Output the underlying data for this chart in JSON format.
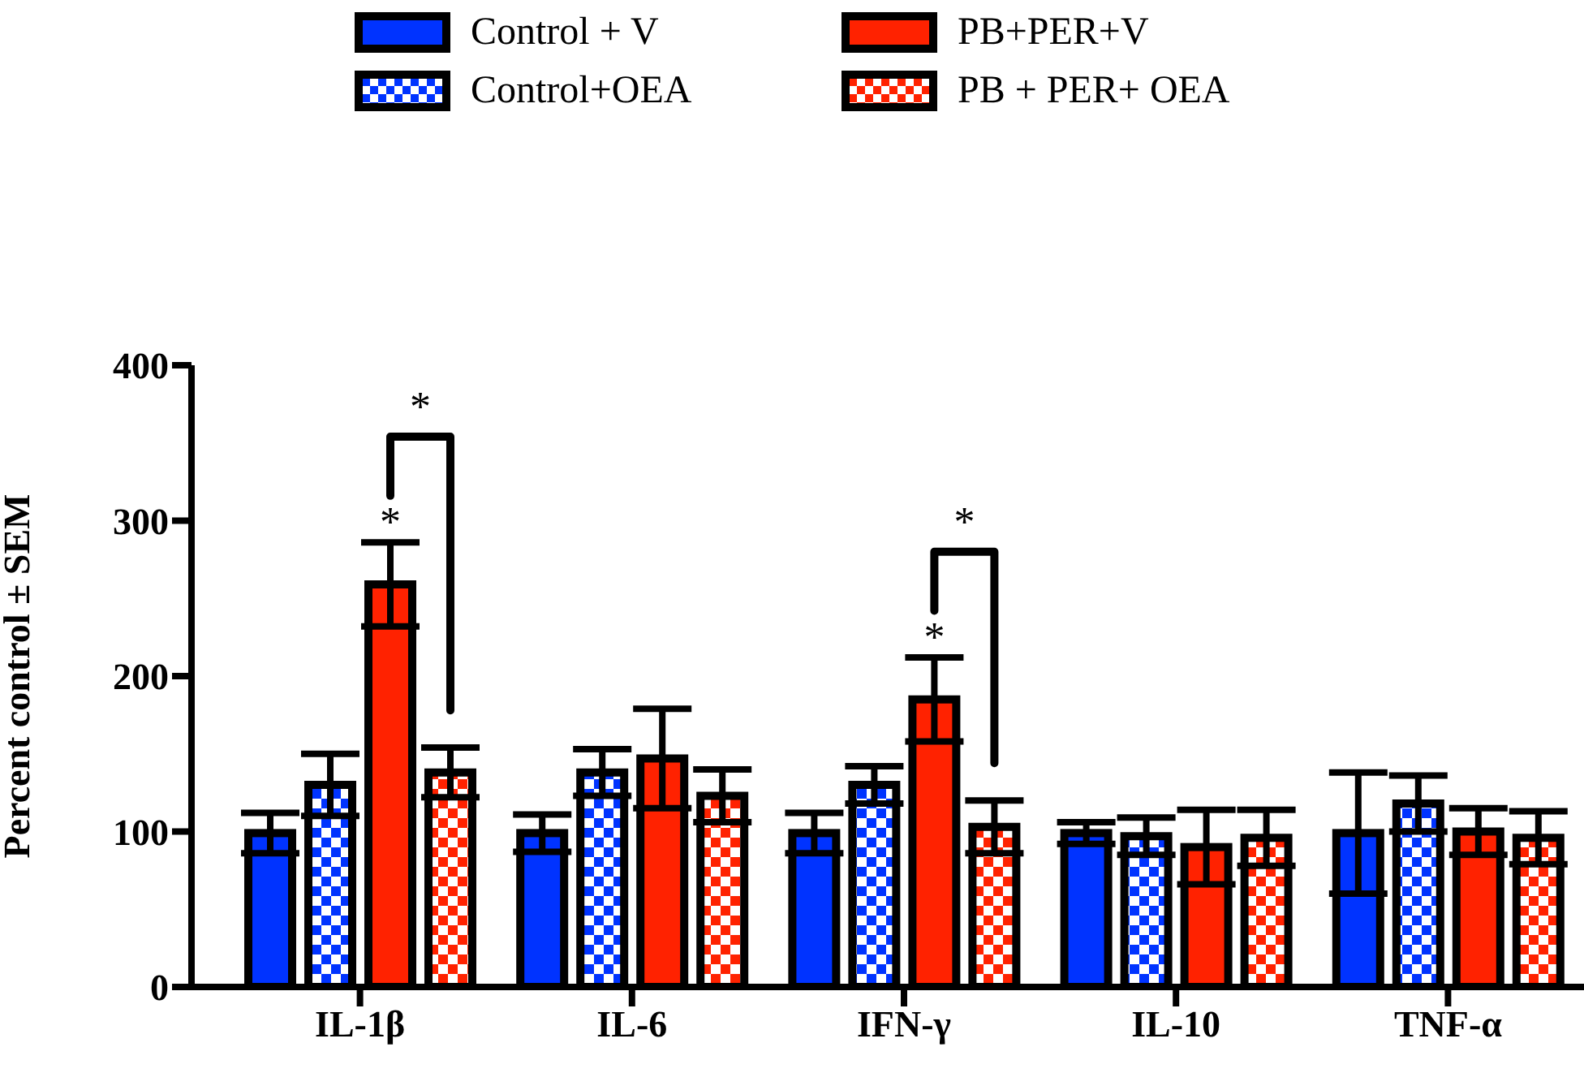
{
  "chart_data": {
    "type": "bar",
    "ylabel": "Percent control ± SEM",
    "categories": [
      "IL-1β",
      "IL-6",
      "IFN-γ",
      "IL-10",
      "TNF-α"
    ],
    "series": [
      {
        "name": "Control + V",
        "color": "#0033ff",
        "values": [
          99,
          99,
          99,
          99,
          99
        ],
        "errors": [
          13,
          12,
          13,
          7,
          39
        ]
      },
      {
        "name": "Control+OEA",
        "color": "#0033ff",
        "values": [
          130,
          138,
          130,
          97,
          118
        ],
        "errors": [
          20,
          15,
          12,
          12,
          18
        ]
      },
      {
        "name": "PB+PER+V",
        "color": "#ff2200",
        "values": [
          259,
          147,
          185,
          90,
          100
        ],
        "errors": [
          27,
          32,
          27,
          24,
          15
        ]
      },
      {
        "name": "PB + PER+ OEA",
        "color": "#ff2200",
        "values": [
          138,
          123,
          103,
          96,
          96
        ],
        "errors": [
          16,
          17,
          17,
          18,
          17
        ]
      }
    ],
    "ylim": [
      0,
      400
    ],
    "yticks": [
      0,
      100,
      200,
      300,
      400
    ],
    "grid": false,
    "legend": "top",
    "annotations": [
      {
        "text": "*",
        "x": "IL-1β",
        "y": 286
      },
      "*",
      {
        "text": "*",
        "x": "IFN-γ",
        "y": 212
      },
      "*"
    ]
  }
}
